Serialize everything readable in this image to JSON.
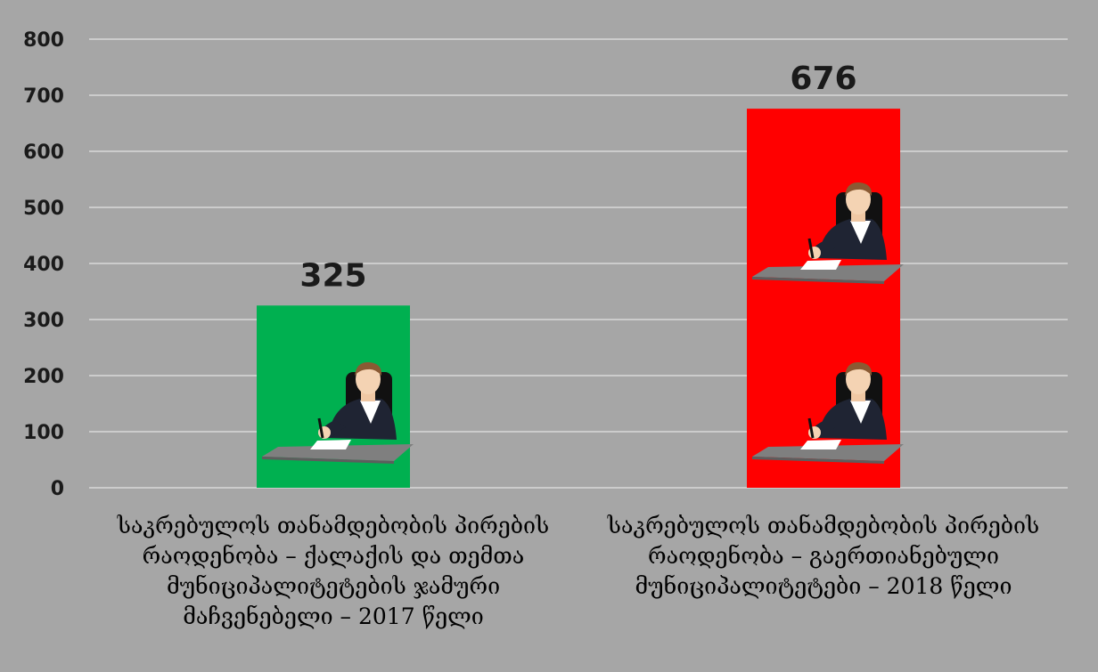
{
  "chart_data": {
    "type": "bar",
    "categories": [
      "საკრებულოს თანამდებობის პირების რაოდენობა – ქალაქის და თემთა მუნიციპალიტეტების ჯამური მაჩვენებელი – 2017 წელი",
      "საკრებულოს თანამდებობის პირების რაოდენობა  – გაერთიანებული მუნიციპალიტეტები – 2018 წელი"
    ],
    "category_lines": [
      [
        "საკრებულოს თანამდებობის პირების",
        "რაოდენობა – ქალაქის და თემთა",
        "მუნიციპალიტეტების ჯამური",
        "მაჩვენებელი – 2017 წელი"
      ],
      [
        "საკრებულოს თანამდებობის პირების",
        "რაოდენობა  – გაერთიანებული",
        "მუნიციპალიტეტები – 2018 წელი"
      ]
    ],
    "values": [
      325,
      676
    ],
    "data_labels": [
      "325",
      "676"
    ],
    "bar_colors": [
      "#00b050",
      "#ff0000"
    ],
    "icons_per_bar": [
      1,
      2
    ],
    "icon": "official-at-desk-icon",
    "y_ticks": [
      "0",
      "100",
      "200",
      "300",
      "400",
      "500",
      "600",
      "700",
      "800"
    ],
    "ylim": [
      0,
      800
    ],
    "grid": true,
    "legend": "none",
    "title": "",
    "xlabel": "",
    "ylabel": ""
  },
  "colors": {
    "background": "#a6a6a6",
    "gridline": "#d9d9d9",
    "axis_line": "#d9d9d9"
  }
}
